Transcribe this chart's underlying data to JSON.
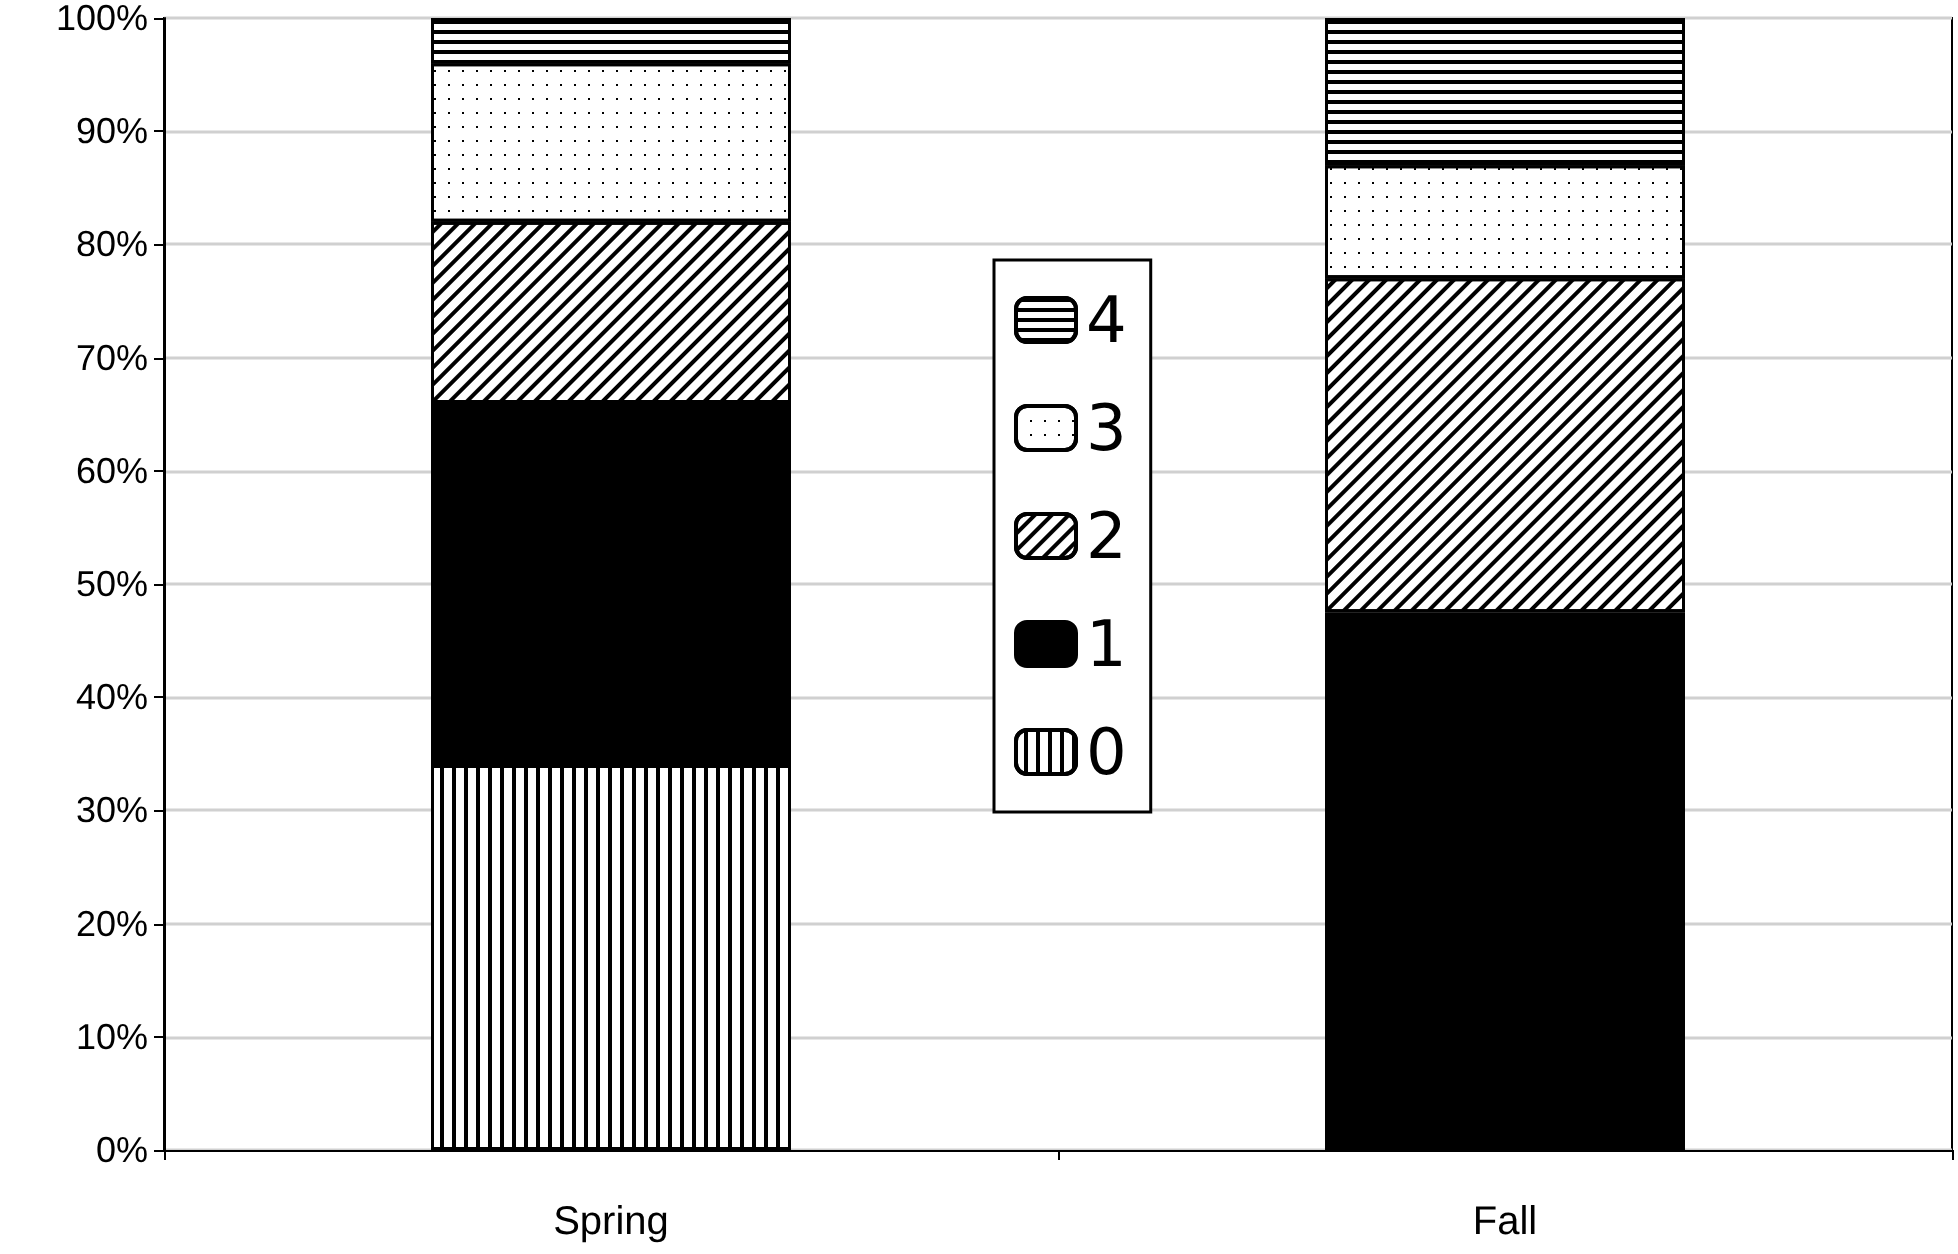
{
  "chart_data": {
    "type": "bar",
    "stacked": true,
    "categories": [
      "Spring",
      "Fall"
    ],
    "series": [
      {
        "name": "0",
        "color": "#ffffff",
        "values": [
          34,
          0
        ]
      },
      {
        "name": "1",
        "color": "#000000",
        "values": [
          32,
          47.5
        ]
      },
      {
        "name": "2",
        "color": "#ffffff",
        "values": [
          16,
          29.5
        ]
      },
      {
        "name": "3",
        "color": "#ffffff",
        "values": [
          14,
          10
        ]
      },
      {
        "name": "4",
        "color": "#ffffff",
        "values": [
          4,
          13
        ]
      }
    ],
    "ylim": [
      0,
      100
    ],
    "yticks": [
      {
        "value": 0,
        "label": "0%"
      },
      {
        "value": 10,
        "label": "10%"
      },
      {
        "value": 20,
        "label": "20%"
      },
      {
        "value": 30,
        "label": "30%"
      },
      {
        "value": 40,
        "label": "40%"
      },
      {
        "value": 50,
        "label": "50%"
      },
      {
        "value": 60,
        "label": "60%"
      },
      {
        "value": 70,
        "label": "70%"
      },
      {
        "value": 80,
        "label": "80%"
      },
      {
        "value": 90,
        "label": "90%"
      },
      {
        "value": 100,
        "label": "100%"
      }
    ],
    "grid": "y",
    "legend": "center"
  }
}
